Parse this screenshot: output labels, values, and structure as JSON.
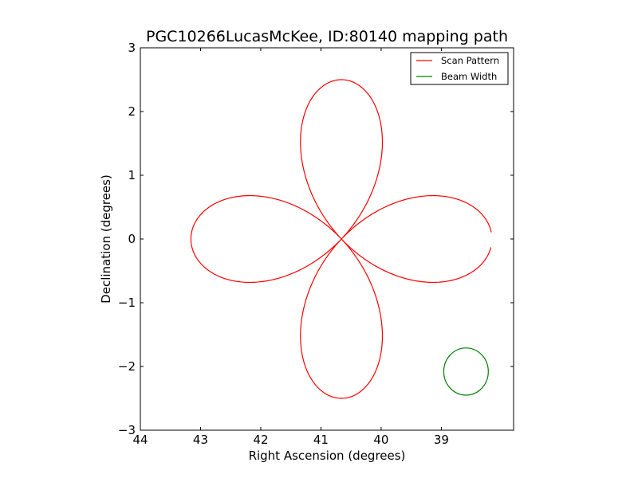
{
  "chart_data": {
    "type": "line",
    "title": "PGC10266LucasMcKee, ID:80140 mapping path",
    "xlabel": "Right Ascension (degrees)",
    "ylabel": "Declination (degrees)",
    "xlim": [
      44,
      37.8
    ],
    "ylim": [
      -3,
      3
    ],
    "x_inverted": true,
    "xticks": [
      44,
      43,
      42,
      41,
      40,
      39
    ],
    "xtick_labels": [
      "44",
      "43",
      "42",
      "41",
      "40",
      "39"
    ],
    "yticks": [
      -3,
      -2,
      -1,
      0,
      1,
      2,
      3
    ],
    "ytick_labels": [
      "−3",
      "−2",
      "−1",
      "0",
      "1",
      "2",
      "3"
    ],
    "grid": false,
    "legend_position": "top-right",
    "series": [
      {
        "name": "Scan Pattern",
        "color": "#ff0000",
        "center": [
          40.66,
          0.0
        ],
        "radius": 2.5,
        "petals": 4,
        "start_angle_deg": 2.4,
        "end_angle_deg": 357.0
      },
      {
        "name": "Beam Width",
        "color": "#008000",
        "center": [
          38.59,
          -2.08
        ],
        "radius": 0.37
      }
    ]
  }
}
